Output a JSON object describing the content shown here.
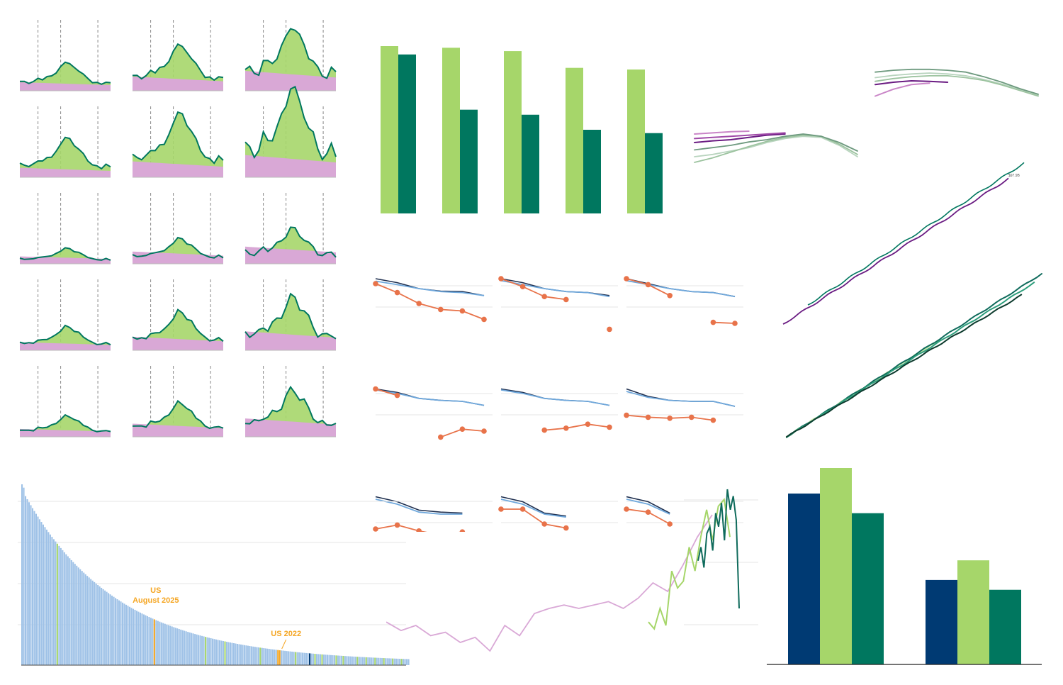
{
  "colors": {
    "light_green": "#a6d66a",
    "teal": "#00775f",
    "dark_teal": "#0f6b5c",
    "navy": "#003a73",
    "pink": "#d9a8d6",
    "purple": "#6a1b82",
    "orange": "#e8734a",
    "blue_line": "#6fa8dc",
    "dark_line": "#1f2f4f",
    "bar_blue": "#9fc2e7",
    "highlight": "#f5a623",
    "grid": "#e4e4e4",
    "dash": "#888888"
  },
  "chart_data": [
    {
      "id": "small-multiples-area",
      "type": "area",
      "rows": 5,
      "cols": 3,
      "row_heights": [
        1.0,
        1.4,
        0.55,
        0.85,
        0.75
      ],
      "col_scales": [
        0.55,
        0.9,
        1.25
      ],
      "base_profile": [
        0.32,
        0.3,
        0.28,
        0.3,
        0.42,
        0.4,
        0.46,
        0.52,
        0.62,
        0.8,
        1.0,
        0.92,
        0.78,
        0.7,
        0.55,
        0.42,
        0.3,
        0.26,
        0.24,
        0.3,
        0.25
      ],
      "series": [
        {
          "name": "",
          "color": "pink"
        },
        {
          "name": "",
          "color": "light_green"
        }
      ]
    },
    {
      "id": "paired-bars-top",
      "type": "bar",
      "categories": [
        "",
        "",
        "",
        "",
        ""
      ],
      "series": [
        {
          "name": "",
          "values": [
            100,
            99,
            97,
            87,
            86
          ],
          "color": "light_green"
        },
        {
          "name": "",
          "values": [
            95,
            62,
            59,
            50,
            48
          ],
          "color": "teal"
        }
      ],
      "ylim": [
        0,
        100
      ]
    },
    {
      "id": "trajectories-left",
      "type": "line",
      "series": [
        {
          "name": "",
          "values": [
            0.3,
            0.34,
            0.4,
            0.46,
            0.55,
            0.62,
            0.66,
            0.64,
            0.5,
            0.3
          ],
          "color": "#b8d4be"
        },
        {
          "name": "",
          "values": [
            0.2,
            0.28,
            0.38,
            0.48,
            0.57,
            0.64,
            0.68,
            0.66,
            0.52,
            0.34
          ],
          "color": "#9cc39f"
        },
        {
          "name": "",
          "values": [
            0.42,
            0.46,
            0.5,
            0.56,
            0.6,
            0.66,
            0.7,
            0.66,
            0.55,
            0.4
          ],
          "color": "#6e9a7f"
        },
        {
          "name": "",
          "values": [
            0.55,
            0.58,
            0.6,
            0.64,
            0.68,
            0.7
          ],
          "color": "#6a1b82"
        },
        {
          "name": "",
          "values": [
            0.7,
            0.72,
            0.74,
            0.75
          ],
          "color": "#c985c7"
        },
        {
          "name": "",
          "values": [
            0.62,
            0.64,
            0.66,
            0.68,
            0.7,
            0.72
          ],
          "color": "#a04aa8"
        }
      ]
    },
    {
      "id": "trajectories-right",
      "type": "line",
      "series": [
        {
          "name": "",
          "values": [
            0.7,
            0.75,
            0.78,
            0.8,
            0.78,
            0.74,
            0.66,
            0.56,
            0.44,
            0.32
          ],
          "color": "#b8d4be"
        },
        {
          "name": "",
          "values": [
            0.62,
            0.68,
            0.72,
            0.74,
            0.74,
            0.7,
            0.64,
            0.54,
            0.42,
            0.3
          ],
          "color": "#9cc39f"
        },
        {
          "name": "",
          "values": [
            0.82,
            0.86,
            0.88,
            0.88,
            0.86,
            0.82,
            0.72,
            0.6,
            0.46,
            0.34
          ],
          "color": "#6e9a7f"
        },
        {
          "name": "",
          "values": [
            0.55,
            0.6,
            0.63,
            0.62,
            0.6
          ],
          "color": "#6a1b82"
        },
        {
          "name": "",
          "values": [
            0.3,
            0.45,
            0.55,
            0.58
          ],
          "color": "#c985c7"
        }
      ]
    },
    {
      "id": "cumulative-lines-top",
      "type": "line",
      "label": "$97.9B",
      "series": [
        {
          "name": "",
          "color": "purple"
        },
        {
          "name": "",
          "color": "teal"
        }
      ]
    },
    {
      "id": "cumulative-lines-bottom",
      "type": "line",
      "series": [
        {
          "name": "",
          "color": "#c3e6a8",
          "end": 0.6
        },
        {
          "name": "",
          "color": "#0f6b5c",
          "end": 1.0
        },
        {
          "name": "",
          "color": "#2e9e7c",
          "end": 0.97
        },
        {
          "name": "",
          "color": "#0d3b2e",
          "end": 0.92
        }
      ]
    },
    {
      "id": "decline-small-multiples",
      "type": "line",
      "rows": 3,
      "cols": 3,
      "panels": [
        {
          "dark": [
            1.0,
            0.92,
            0.8,
            0.75,
            0.74,
            0.66
          ],
          "blue": [
            0.95,
            0.88,
            0.8,
            0.74,
            0.72,
            0.66
          ],
          "orange": [
            0.9,
            0.72,
            0.5,
            0.38,
            0.35,
            0.18
          ]
        },
        {
          "dark": [
            1.0,
            0.92,
            0.8,
            0.74,
            0.72,
            0.66
          ],
          "blue": [
            0.96,
            0.88,
            0.8,
            0.74,
            0.72,
            0.64
          ],
          "orange": [
            1.0,
            0.84,
            0.64,
            0.58,
            null,
            -0.02
          ]
        },
        {
          "dark": [
            1.0,
            0.9,
            0.8,
            0.74,
            0.72,
            0.64
          ],
          "blue": [
            0.96,
            0.88,
            0.8,
            0.74,
            0.72,
            0.64
          ],
          "orange": [
            1.0,
            0.88,
            0.66,
            null,
            0.12,
            0.1
          ]
        },
        {
          "dark": [
            0.95,
            0.88,
            0.76,
            0.72,
            0.7,
            0.62
          ],
          "blue": [
            0.93,
            0.86,
            0.76,
            0.72,
            0.7,
            0.62
          ],
          "orange": [
            0.95,
            0.82,
            null,
            -0.02,
            0.14,
            0.1
          ]
        },
        {
          "dark": [
            0.95,
            0.88,
            0.76,
            0.72,
            0.7,
            0.62
          ],
          "blue": [
            0.93,
            0.86,
            0.76,
            0.72,
            0.7,
            0.62
          ],
          "orange": [
            null,
            null,
            0.12,
            0.16,
            0.24,
            0.18
          ]
        },
        {
          "dark": [
            0.95,
            0.8,
            0.72,
            0.7,
            0.7,
            0.6
          ],
          "blue": [
            0.9,
            0.78,
            0.72,
            0.7,
            0.7,
            0.6
          ],
          "orange": [
            0.42,
            0.38,
            0.36,
            0.38,
            0.32
          ]
        },
        {
          "dark": [
            0.95,
            0.85,
            0.68,
            0.64,
            0.62
          ],
          "blue": [
            0.9,
            0.8,
            0.64,
            0.6,
            0.6
          ],
          "orange": [
            0.3,
            0.38,
            0.26,
            0.18,
            0.24
          ]
        },
        {
          "dark": [
            0.95,
            0.85,
            0.62,
            0.56
          ],
          "blue": [
            0.9,
            0.8,
            0.6,
            0.54
          ],
          "orange": [
            0.7,
            0.7,
            0.4,
            0.32
          ]
        },
        {
          "dark": [
            0.95,
            0.85,
            0.62
          ],
          "blue": [
            0.9,
            0.8,
            0.6
          ],
          "orange": [
            0.7,
            0.64,
            0.4
          ]
        }
      ]
    },
    {
      "id": "ranked-bars",
      "type": "bar",
      "n": 220,
      "annotations": [
        {
          "text_lines": [
            "US",
            "August 2025"
          ],
          "index": 75
        },
        {
          "text_lines": [
            "US 2022"
          ],
          "index": 146
        }
      ],
      "green_indices": [
        20,
        104,
        115,
        135,
        155,
        166,
        170,
        178,
        182,
        190,
        195,
        200,
        205,
        210,
        215
      ],
      "navy_indices": [
        163
      ],
      "orange_indices": [
        75,
        145,
        146
      ]
    },
    {
      "id": "spike-line",
      "type": "line",
      "series": [
        {
          "name": "",
          "color": "pink",
          "values": [
            0.22,
            0.17,
            0.2,
            0.14,
            0.16,
            0.1,
            0.13,
            0.05,
            0.2,
            0.14,
            0.27,
            0.3,
            0.32,
            0.3,
            0.32,
            0.34,
            0.3,
            0.36,
            0.45,
            0.4,
            0.55,
            0.72,
            0.85
          ]
        },
        {
          "name": "",
          "color": "light_green",
          "values": [
            0.22,
            0.18,
            0.3,
            0.2,
            0.52,
            0.42,
            0.46,
            0.66,
            0.52,
            0.72,
            0.88,
            0.7,
            0.9,
            0.94,
            0.72
          ]
        },
        {
          "name": "",
          "color": "dark_teal",
          "values": [
            0.58,
            0.66,
            0.54,
            0.74,
            0.78,
            0.64,
            0.86,
            0.78,
            0.92,
            0.7,
            1.0,
            0.88,
            0.96,
            0.82,
            0.3
          ]
        }
      ]
    },
    {
      "id": "grouped-bars-bottom",
      "type": "bar",
      "categories": [
        "",
        ""
      ],
      "series": [
        {
          "name": "",
          "values": [
            87,
            43
          ],
          "color": "navy"
        },
        {
          "name": "",
          "values": [
            100,
            53
          ],
          "color": "light_green"
        },
        {
          "name": "",
          "values": [
            77,
            38
          ],
          "color": "teal"
        }
      ],
      "ylim": [
        0,
        100
      ]
    }
  ]
}
